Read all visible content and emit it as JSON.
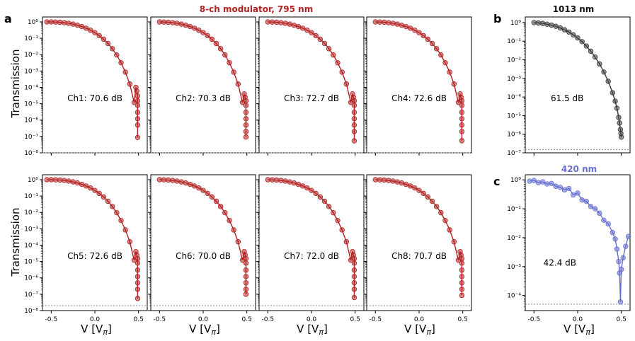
{
  "figure": {
    "title_modulator": "8-ch modulator, 795 nm",
    "title_b": "1013 nm",
    "title_c": "420 nm",
    "panel_labels": [
      "a",
      "b",
      "c"
    ],
    "ylabel": "Transmission",
    "xlabel": "V [V",
    "xlabel_sub": "π",
    "xlabel_close": "]",
    "colors": {
      "red": "#b22222",
      "gray": "#3a3a3a",
      "blue": "#6670d0",
      "title_red": "#b22222",
      "title_blue": "#6670d0"
    }
  },
  "chart_data": [
    {
      "type": "line",
      "panel": "a",
      "channel": "Ch1",
      "annotation": "Ch1: 70.6 dB",
      "xlim": [
        -0.6,
        0.6
      ],
      "ylim": [
        1e-08,
        2
      ],
      "log_y": true,
      "floor": 1e-08,
      "x_ticks": [
        "-0.5",
        "0.0",
        "0.5"
      ],
      "y_ticks": [
        "10^0",
        "10^-1",
        "10^-2",
        "10^-3",
        "10^-4",
        "10^-5",
        "10^-6",
        "10^-7",
        "10^-8"
      ],
      "series": [
        {
          "values_x": [
            -0.55,
            -0.5,
            -0.45,
            -0.4,
            -0.35,
            -0.3,
            -0.25,
            -0.2,
            -0.15,
            -0.1,
            -0.05,
            0.0,
            0.05,
            0.1,
            0.15,
            0.2,
            0.25,
            0.3,
            0.35,
            0.4,
            0.45,
            0.47,
            0.48,
            0.49,
            0.49,
            0.49,
            0.49,
            0.49,
            0.49,
            0.49
          ],
          "values_y": [
            1.0,
            1.0,
            0.98,
            0.95,
            0.9,
            0.82,
            0.73,
            0.63,
            0.52,
            0.41,
            0.31,
            0.22,
            0.145,
            0.088,
            0.048,
            0.023,
            0.0095,
            0.0032,
            0.00085,
            0.00016,
            1.2e-05,
            0.0001,
            6e-05,
            3e-05,
            1.5e-05,
            8e-06,
            3e-06,
            1.2e-06,
            5e-07,
            8.7e-08
          ]
        }
      ]
    },
    {
      "type": "line",
      "panel": "a",
      "channel": "Ch2",
      "annotation": "Ch2: 70.3 dB",
      "xlim": [
        -0.6,
        0.6
      ],
      "ylim": [
        1e-08,
        2
      ],
      "log_y": true,
      "floor": 1e-08,
      "x_ticks": [
        "-0.5",
        "0.0",
        "0.5"
      ],
      "series": [
        {
          "values_x": [
            -0.5,
            -0.45,
            -0.4,
            -0.35,
            -0.3,
            -0.25,
            -0.2,
            -0.15,
            -0.1,
            -0.05,
            0.0,
            0.05,
            0.1,
            0.15,
            0.2,
            0.25,
            0.3,
            0.35,
            0.4,
            0.45,
            0.47,
            0.48,
            0.49,
            0.49,
            0.49,
            0.49,
            0.49,
            0.49,
            0.49
          ],
          "values_y": [
            1.0,
            0.98,
            0.95,
            0.9,
            0.82,
            0.73,
            0.63,
            0.52,
            0.41,
            0.31,
            0.22,
            0.145,
            0.088,
            0.048,
            0.023,
            0.0095,
            0.0032,
            0.00085,
            0.00016,
            1.2e-05,
            4e-05,
            2.5e-05,
            1.5e-05,
            8e-06,
            3e-06,
            1.2e-06,
            5e-07,
            2e-07,
            9.3e-08
          ]
        }
      ]
    },
    {
      "type": "line",
      "panel": "a",
      "channel": "Ch3",
      "annotation": "Ch3: 72.7 dB",
      "xlim": [
        -0.6,
        0.6
      ],
      "ylim": [
        1e-08,
        2
      ],
      "log_y": true,
      "floor": 1e-08,
      "x_ticks": [
        "-0.5",
        "0.0",
        "0.5"
      ],
      "series": [
        {
          "values_x": [
            -0.5,
            -0.45,
            -0.4,
            -0.35,
            -0.3,
            -0.25,
            -0.2,
            -0.15,
            -0.1,
            -0.05,
            0.0,
            0.05,
            0.1,
            0.15,
            0.2,
            0.25,
            0.3,
            0.35,
            0.4,
            0.45,
            0.47,
            0.48,
            0.49,
            0.49,
            0.49,
            0.49,
            0.49,
            0.49,
            0.49
          ],
          "values_y": [
            1.0,
            0.98,
            0.95,
            0.9,
            0.82,
            0.73,
            0.63,
            0.52,
            0.41,
            0.31,
            0.22,
            0.145,
            0.088,
            0.048,
            0.023,
            0.0095,
            0.0032,
            0.00085,
            0.00016,
            1.2e-05,
            4e-05,
            2.5e-05,
            1.5e-05,
            8e-06,
            3e-06,
            1.2e-06,
            5e-07,
            2e-07,
            5.4e-08
          ]
        }
      ]
    },
    {
      "type": "line",
      "panel": "a",
      "channel": "Ch4",
      "annotation": "Ch4: 72.6 dB",
      "xlim": [
        -0.6,
        0.6
      ],
      "ylim": [
        1e-08,
        2
      ],
      "log_y": true,
      "floor": 1e-08,
      "x_ticks": [
        "-0.5",
        "0.0",
        "0.5"
      ],
      "series": [
        {
          "values_x": [
            -0.5,
            -0.45,
            -0.4,
            -0.35,
            -0.3,
            -0.25,
            -0.2,
            -0.15,
            -0.1,
            -0.05,
            0.0,
            0.05,
            0.1,
            0.15,
            0.2,
            0.25,
            0.3,
            0.35,
            0.4,
            0.45,
            0.47,
            0.48,
            0.49,
            0.49,
            0.49,
            0.49,
            0.49,
            0.49,
            0.49
          ],
          "values_y": [
            1.0,
            0.98,
            0.95,
            0.9,
            0.82,
            0.73,
            0.63,
            0.52,
            0.41,
            0.31,
            0.22,
            0.145,
            0.088,
            0.048,
            0.023,
            0.0095,
            0.0032,
            0.00085,
            0.00016,
            1.2e-05,
            4e-05,
            2.5e-05,
            1.5e-05,
            8e-06,
            3e-06,
            1.2e-06,
            5e-07,
            2e-07,
            5.5e-08
          ]
        }
      ]
    },
    {
      "type": "line",
      "panel": "a",
      "channel": "Ch5",
      "annotation": "Ch5: 72.6 dB",
      "xlim": [
        -0.6,
        0.6
      ],
      "ylim": [
        1e-08,
        2
      ],
      "log_y": true,
      "floor": 2e-08,
      "x_ticks": [
        "-0.5",
        "0.0",
        "0.5"
      ],
      "series": [
        {
          "values_x": [
            -0.55,
            -0.5,
            -0.45,
            -0.4,
            -0.35,
            -0.3,
            -0.25,
            -0.2,
            -0.15,
            -0.1,
            -0.05,
            0.0,
            0.05,
            0.1,
            0.15,
            0.2,
            0.25,
            0.3,
            0.35,
            0.4,
            0.45,
            0.47,
            0.48,
            0.49,
            0.49,
            0.49,
            0.49,
            0.49,
            0.49,
            0.49
          ],
          "values_y": [
            1.0,
            1.0,
            0.98,
            0.95,
            0.9,
            0.82,
            0.73,
            0.63,
            0.52,
            0.41,
            0.31,
            0.22,
            0.145,
            0.088,
            0.048,
            0.023,
            0.0095,
            0.0032,
            0.00085,
            0.00016,
            1.2e-05,
            4e-05,
            2.5e-05,
            1.5e-05,
            8e-06,
            3e-06,
            1.2e-06,
            5e-07,
            2e-07,
            5.5e-08
          ]
        }
      ]
    },
    {
      "type": "line",
      "panel": "a",
      "channel": "Ch6",
      "annotation": "Ch6: 70.0 dB",
      "xlim": [
        -0.6,
        0.6
      ],
      "ylim": [
        1e-08,
        2
      ],
      "log_y": true,
      "floor": 2e-08,
      "x_ticks": [
        "-0.5",
        "0.0",
        "0.5"
      ],
      "series": [
        {
          "values_x": [
            -0.5,
            -0.45,
            -0.4,
            -0.35,
            -0.3,
            -0.25,
            -0.2,
            -0.15,
            -0.1,
            -0.05,
            0.0,
            0.05,
            0.1,
            0.15,
            0.2,
            0.25,
            0.3,
            0.35,
            0.4,
            0.45,
            0.47,
            0.48,
            0.49,
            0.49,
            0.49,
            0.49,
            0.49,
            0.49,
            0.49
          ],
          "values_y": [
            1.0,
            0.98,
            0.95,
            0.9,
            0.82,
            0.73,
            0.63,
            0.52,
            0.41,
            0.31,
            0.22,
            0.145,
            0.088,
            0.048,
            0.023,
            0.0095,
            0.0032,
            0.00085,
            0.00016,
            1.2e-05,
            4e-05,
            2.5e-05,
            1.5e-05,
            8e-06,
            3e-06,
            1.2e-06,
            5e-07,
            2e-07,
            1e-07
          ]
        }
      ]
    },
    {
      "type": "line",
      "panel": "a",
      "channel": "Ch7",
      "annotation": "Ch7: 72.0 dB",
      "xlim": [
        -0.6,
        0.6
      ],
      "ylim": [
        1e-08,
        2
      ],
      "log_y": true,
      "floor": 2e-08,
      "x_ticks": [
        "-0.5",
        "0.0",
        "0.5"
      ],
      "series": [
        {
          "values_x": [
            -0.5,
            -0.45,
            -0.4,
            -0.35,
            -0.3,
            -0.25,
            -0.2,
            -0.15,
            -0.1,
            -0.05,
            0.0,
            0.05,
            0.1,
            0.15,
            0.2,
            0.25,
            0.3,
            0.35,
            0.4,
            0.45,
            0.47,
            0.48,
            0.49,
            0.49,
            0.49,
            0.49,
            0.49,
            0.49,
            0.49
          ],
          "values_y": [
            1.0,
            0.98,
            0.95,
            0.9,
            0.82,
            0.73,
            0.63,
            0.52,
            0.41,
            0.31,
            0.22,
            0.145,
            0.088,
            0.048,
            0.023,
            0.0095,
            0.0032,
            0.00085,
            0.00016,
            1.2e-05,
            4e-05,
            2.5e-05,
            1.5e-05,
            8e-06,
            3e-06,
            1.2e-06,
            5e-07,
            2e-07,
            6.3e-08
          ]
        }
      ]
    },
    {
      "type": "line",
      "panel": "a",
      "channel": "Ch8",
      "annotation": "Ch8: 70.7 dB",
      "xlim": [
        -0.6,
        0.6
      ],
      "ylim": [
        1e-08,
        2
      ],
      "log_y": true,
      "floor": 2e-08,
      "x_ticks": [
        "-0.5",
        "0.0",
        "0.5"
      ],
      "series": [
        {
          "values_x": [
            -0.5,
            -0.45,
            -0.4,
            -0.35,
            -0.3,
            -0.25,
            -0.2,
            -0.15,
            -0.1,
            -0.05,
            0.0,
            0.05,
            0.1,
            0.15,
            0.2,
            0.25,
            0.3,
            0.35,
            0.4,
            0.45,
            0.47,
            0.48,
            0.49,
            0.49,
            0.49,
            0.49,
            0.49,
            0.49,
            0.49
          ],
          "values_y": [
            1.0,
            0.98,
            0.95,
            0.9,
            0.82,
            0.73,
            0.63,
            0.52,
            0.41,
            0.31,
            0.22,
            0.145,
            0.088,
            0.048,
            0.023,
            0.0095,
            0.0032,
            0.00085,
            0.00016,
            1.2e-05,
            4e-05,
            2.5e-05,
            1.5e-05,
            8e-06,
            3e-06,
            1.2e-06,
            5e-07,
            2e-07,
            8.5e-08
          ]
        }
      ]
    },
    {
      "type": "scatter",
      "panel": "b",
      "title": "1013 nm",
      "annotation": "61.5 dB",
      "xlim": [
        -0.6,
        0.6
      ],
      "ylim": [
        1e-07,
        2
      ],
      "log_y": true,
      "floor": 1.5e-07,
      "y_ticks": [
        "10^0",
        "10^-1",
        "10^-2",
        "10^-3",
        "10^-4",
        "10^-5",
        "10^-6",
        "10^-7"
      ],
      "series": [
        {
          "values_x": [
            -0.5,
            -0.45,
            -0.4,
            -0.35,
            -0.3,
            -0.25,
            -0.2,
            -0.15,
            -0.1,
            -0.05,
            0.0,
            0.05,
            0.1,
            0.15,
            0.2,
            0.25,
            0.3,
            0.35,
            0.4,
            0.43,
            0.45,
            0.47,
            0.48,
            0.49,
            0.495,
            0.5
          ],
          "values_y": [
            1.0,
            0.96,
            0.9,
            0.82,
            0.73,
            0.63,
            0.52,
            0.41,
            0.31,
            0.22,
            0.15,
            0.095,
            0.055,
            0.029,
            0.014,
            0.006,
            0.0022,
            0.0007,
            0.00017,
            6e-05,
            2.5e-05,
            8e-06,
            4e-06,
            1.8e-06,
            1.1e-06,
            7e-07
          ]
        }
      ]
    },
    {
      "type": "scatter",
      "panel": "c",
      "title": "420 nm",
      "annotation": "42.4 dB",
      "xlim": [
        -0.6,
        0.6
      ],
      "ylim": [
        3e-05,
        1.5
      ],
      "log_y": true,
      "floor": 5e-05,
      "x_ticks": [
        "-0.5",
        "0.0",
        "0.5"
      ],
      "y_ticks": [
        "10^0",
        "10^-1",
        "10^-2",
        "10^-3",
        "10^-4"
      ],
      "series": [
        {
          "values_x": [
            -0.55,
            -0.5,
            -0.45,
            -0.4,
            -0.35,
            -0.3,
            -0.25,
            -0.2,
            -0.15,
            -0.1,
            -0.05,
            0.0,
            0.05,
            0.1,
            0.15,
            0.2,
            0.25,
            0.3,
            0.35,
            0.4,
            0.43,
            0.45,
            0.47,
            0.48,
            0.49,
            0.5,
            0.52,
            0.55,
            0.58
          ],
          "values_y": [
            0.9,
            0.95,
            0.8,
            0.85,
            0.72,
            0.75,
            0.6,
            0.55,
            0.45,
            0.5,
            0.3,
            0.35,
            0.2,
            0.18,
            0.12,
            0.1,
            0.07,
            0.04,
            0.03,
            0.015,
            0.009,
            0.004,
            0.0015,
            0.0006,
            6e-05,
            0.0008,
            0.002,
            0.005,
            0.011
          ]
        }
      ]
    }
  ]
}
